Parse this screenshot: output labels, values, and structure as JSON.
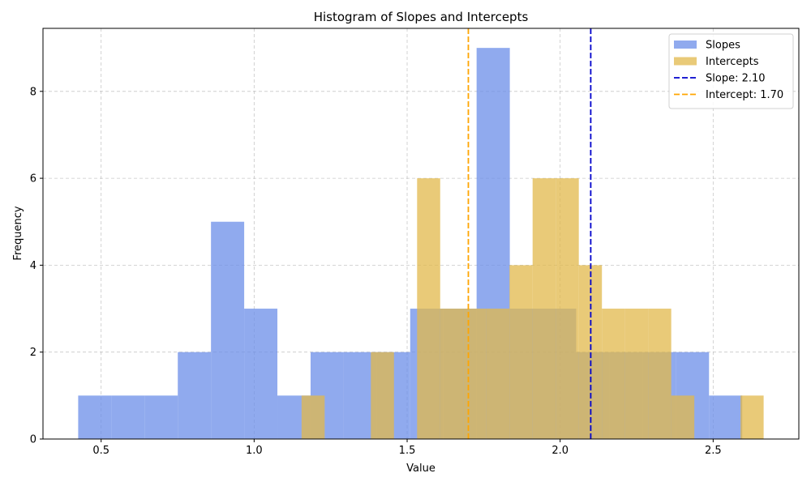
{
  "chart_data": {
    "type": "bar",
    "title": "Histogram of Slopes and Intercepts",
    "xlabel": "Value",
    "ylabel": "Frequency",
    "xlim": [
      0.31,
      2.78
    ],
    "ylim": [
      0,
      9.45
    ],
    "x_ticks": [
      0.5,
      1.0,
      1.5,
      2.0,
      2.5
    ],
    "x_tick_labels": [
      "0.5",
      "1.0",
      "1.5",
      "2.0",
      "2.5"
    ],
    "y_ticks": [
      0,
      2,
      4,
      6,
      8
    ],
    "y_tick_labels": [
      "0",
      "2",
      "4",
      "6",
      "8"
    ],
    "grid": true,
    "legend_position": "top-right",
    "series": [
      {
        "name": "Slopes",
        "color": "#6b8ee8",
        "bin_width": 0.1085,
        "bins": [
          {
            "x0": 0.425,
            "count": 1
          },
          {
            "x0": 0.5335,
            "count": 1
          },
          {
            "x0": 0.642,
            "count": 1
          },
          {
            "x0": 0.7505,
            "count": 2
          },
          {
            "x0": 0.859,
            "count": 5
          },
          {
            "x0": 0.9675,
            "count": 3
          },
          {
            "x0": 1.076,
            "count": 1
          },
          {
            "x0": 1.1845,
            "count": 2
          },
          {
            "x0": 1.293,
            "count": 2
          },
          {
            "x0": 1.4015,
            "count": 2
          },
          {
            "x0": 1.51,
            "count": 3
          },
          {
            "x0": 1.6185,
            "count": 3
          },
          {
            "x0": 1.727,
            "count": 9
          },
          {
            "x0": 1.8355,
            "count": 3
          },
          {
            "x0": 1.944,
            "count": 3
          },
          {
            "x0": 2.0525,
            "count": 2
          },
          {
            "x0": 2.161,
            "count": 2
          },
          {
            "x0": 2.2695,
            "count": 2
          },
          {
            "x0": 2.378,
            "count": 2
          },
          {
            "x0": 2.4865,
            "count": 1
          }
        ]
      },
      {
        "name": "Intercepts",
        "color": "#e1b84b",
        "bin_width": 0.0755,
        "bins": [
          {
            "x0": 1.155,
            "count": 1
          },
          {
            "x0": 1.2305,
            "count": 0
          },
          {
            "x0": 1.306,
            "count": 0
          },
          {
            "x0": 1.3815,
            "count": 2
          },
          {
            "x0": 1.457,
            "count": 0
          },
          {
            "x0": 1.5325,
            "count": 6
          },
          {
            "x0": 1.608,
            "count": 3
          },
          {
            "x0": 1.6835,
            "count": 3
          },
          {
            "x0": 1.759,
            "count": 3
          },
          {
            "x0": 1.8345,
            "count": 4
          },
          {
            "x0": 1.91,
            "count": 6
          },
          {
            "x0": 1.9855,
            "count": 6
          },
          {
            "x0": 2.061,
            "count": 4
          },
          {
            "x0": 2.1365,
            "count": 3
          },
          {
            "x0": 2.212,
            "count": 3
          },
          {
            "x0": 2.2875,
            "count": 3
          },
          {
            "x0": 2.363,
            "count": 1
          },
          {
            "x0": 2.4385,
            "count": 0
          },
          {
            "x0": 2.514,
            "count": 0
          },
          {
            "x0": 2.5895,
            "count": 1
          }
        ]
      }
    ],
    "reference_lines": [
      {
        "name": "Slope: 2.10",
        "x": 2.1,
        "color": "#0000cc",
        "style": "dashed"
      },
      {
        "name": "Intercept: 1.70",
        "x": 1.7,
        "color": "#ffa500",
        "style": "dashed"
      }
    ],
    "legend": [
      {
        "label": "Slopes",
        "kind": "patch",
        "color": "#6b8ee8"
      },
      {
        "label": "Intercepts",
        "kind": "patch",
        "color": "#e1b84b"
      },
      {
        "label": "Slope: 2.10",
        "kind": "line",
        "color": "#0000cc"
      },
      {
        "label": "Intercept: 1.70",
        "kind": "line",
        "color": "#ffa500"
      }
    ]
  }
}
